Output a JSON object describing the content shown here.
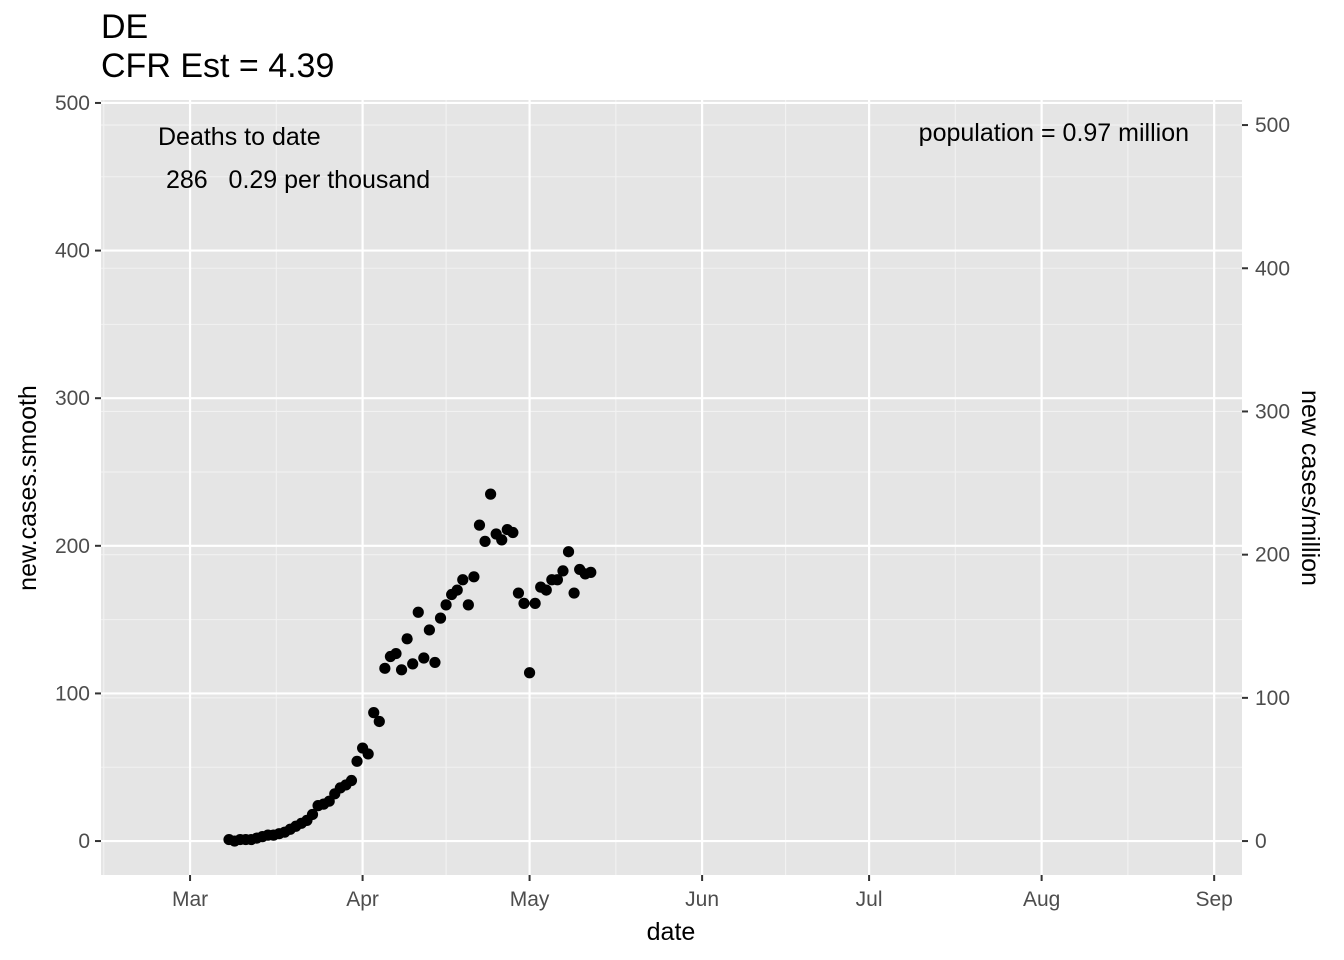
{
  "chart_data": {
    "type": "scatter",
    "title": "DE",
    "subtitle": "CFR Est = 4.39",
    "xlabel": "date",
    "ylabel": "new.cases.smooth",
    "ylabel_right": "new cases/million",
    "xlim": [
      "2020-02-14",
      "2020-09-06"
    ],
    "ylim": [
      -23,
      502
    ],
    "ylim_right": [
      -23.7,
      517.5
    ],
    "x_ticks": [
      {
        "label": "Mar",
        "date": "2020-03-01"
      },
      {
        "label": "Apr",
        "date": "2020-04-01"
      },
      {
        "label": "May",
        "date": "2020-05-01"
      },
      {
        "label": "Jun",
        "date": "2020-06-01"
      },
      {
        "label": "Jul",
        "date": "2020-07-01"
      },
      {
        "label": "Aug",
        "date": "2020-08-01"
      },
      {
        "label": "Sep",
        "date": "2020-09-01"
      }
    ],
    "y_ticks": [
      0,
      100,
      200,
      300,
      400,
      500
    ],
    "y_ticks_right": [
      0,
      100,
      200,
      300,
      400,
      500
    ],
    "grid": true,
    "annotations": {
      "deaths_header": "Deaths to date",
      "deaths_line": "286   0.29 per thousand",
      "population": "population = 0.97 million"
    },
    "points": [
      {
        "x": "2020-03-08",
        "y": 1
      },
      {
        "x": "2020-03-09",
        "y": 0
      },
      {
        "x": "2020-03-10",
        "y": 1
      },
      {
        "x": "2020-03-11",
        "y": 1
      },
      {
        "x": "2020-03-12",
        "y": 1
      },
      {
        "x": "2020-03-13",
        "y": 2
      },
      {
        "x": "2020-03-14",
        "y": 3
      },
      {
        "x": "2020-03-15",
        "y": 4
      },
      {
        "x": "2020-03-16",
        "y": 4
      },
      {
        "x": "2020-03-17",
        "y": 5
      },
      {
        "x": "2020-03-18",
        "y": 6
      },
      {
        "x": "2020-03-19",
        "y": 8
      },
      {
        "x": "2020-03-20",
        "y": 10
      },
      {
        "x": "2020-03-21",
        "y": 12
      },
      {
        "x": "2020-03-22",
        "y": 14
      },
      {
        "x": "2020-03-23",
        "y": 18
      },
      {
        "x": "2020-03-24",
        "y": 24
      },
      {
        "x": "2020-03-25",
        "y": 25
      },
      {
        "x": "2020-03-26",
        "y": 27
      },
      {
        "x": "2020-03-27",
        "y": 32
      },
      {
        "x": "2020-03-28",
        "y": 36
      },
      {
        "x": "2020-03-29",
        "y": 38
      },
      {
        "x": "2020-03-30",
        "y": 41
      },
      {
        "x": "2020-03-31",
        "y": 54
      },
      {
        "x": "2020-04-01",
        "y": 63
      },
      {
        "x": "2020-04-02",
        "y": 59
      },
      {
        "x": "2020-04-03",
        "y": 87
      },
      {
        "x": "2020-04-04",
        "y": 81
      },
      {
        "x": "2020-04-05",
        "y": 117
      },
      {
        "x": "2020-04-06",
        "y": 125
      },
      {
        "x": "2020-04-07",
        "y": 127
      },
      {
        "x": "2020-04-08",
        "y": 116
      },
      {
        "x": "2020-04-09",
        "y": 137
      },
      {
        "x": "2020-04-10",
        "y": 120
      },
      {
        "x": "2020-04-11",
        "y": 155
      },
      {
        "x": "2020-04-12",
        "y": 124
      },
      {
        "x": "2020-04-13",
        "y": 143
      },
      {
        "x": "2020-04-14",
        "y": 121
      },
      {
        "x": "2020-04-15",
        "y": 151
      },
      {
        "x": "2020-04-16",
        "y": 160
      },
      {
        "x": "2020-04-17",
        "y": 167
      },
      {
        "x": "2020-04-18",
        "y": 170
      },
      {
        "x": "2020-04-19",
        "y": 177
      },
      {
        "x": "2020-04-20",
        "y": 160
      },
      {
        "x": "2020-04-21",
        "y": 179
      },
      {
        "x": "2020-04-22",
        "y": 214
      },
      {
        "x": "2020-04-23",
        "y": 203
      },
      {
        "x": "2020-04-24",
        "y": 235
      },
      {
        "x": "2020-04-25",
        "y": 208
      },
      {
        "x": "2020-04-26",
        "y": 204
      },
      {
        "x": "2020-04-27",
        "y": 211
      },
      {
        "x": "2020-04-28",
        "y": 209
      },
      {
        "x": "2020-04-29",
        "y": 168
      },
      {
        "x": "2020-04-30",
        "y": 161
      },
      {
        "x": "2020-05-01",
        "y": 114
      },
      {
        "x": "2020-05-02",
        "y": 161
      },
      {
        "x": "2020-05-03",
        "y": 172
      },
      {
        "x": "2020-05-04",
        "y": 170
      },
      {
        "x": "2020-05-05",
        "y": 177
      },
      {
        "x": "2020-05-06",
        "y": 177
      },
      {
        "x": "2020-05-07",
        "y": 183
      },
      {
        "x": "2020-05-08",
        "y": 196
      },
      {
        "x": "2020-05-09",
        "y": 168
      },
      {
        "x": "2020-05-10",
        "y": 184
      },
      {
        "x": "2020-05-11",
        "y": 181
      },
      {
        "x": "2020-05-12",
        "y": 182
      }
    ]
  }
}
